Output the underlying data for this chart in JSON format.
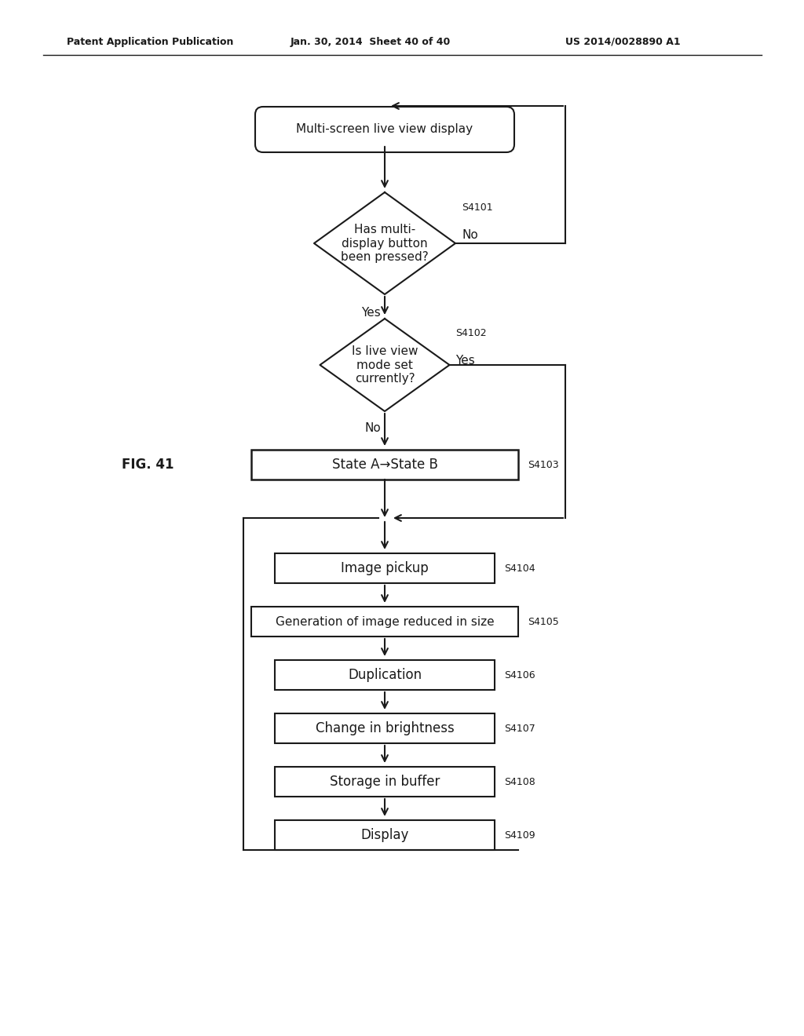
{
  "header_left": "Patent Application Publication",
  "header_mid": "Jan. 30, 2014  Sheet 40 of 40",
  "header_right": "US 2014/0028890 A1",
  "fig_label": "FIG. 41",
  "title_box": "Multi-screen live view display",
  "diamond1_text": "Has multi-\ndisplay button\nbeen pressed?",
  "diamond1_label": "S4101",
  "diamond1_no": "No",
  "diamond1_yes": "Yes",
  "diamond2_text": "Is live view\nmode set\ncurrently?",
  "diamond2_label": "S4102",
  "diamond2_yes": "Yes",
  "diamond2_no": "No",
  "box1_text": "State A→State B",
  "box1_label": "S4103",
  "box2_text": "Image pickup",
  "box2_label": "S4104",
  "box3_text": "Generation of image reduced in size",
  "box3_label": "S4105",
  "box4_text": "Duplication",
  "box4_label": "S4106",
  "box5_text": "Change in brightness",
  "box5_label": "S4107",
  "box6_text": "Storage in buffer",
  "box6_label": "S4108",
  "box7_text": "Display",
  "box7_label": "S4109",
  "bg_color": "#ffffff",
  "line_color": "#1a1a1a",
  "text_color": "#1a1a1a"
}
